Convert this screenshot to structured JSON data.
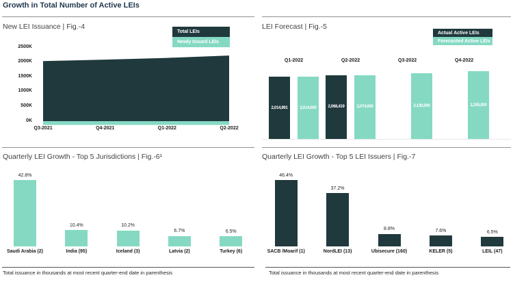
{
  "page": {
    "title": "Growth in Total Number of Active LEIs",
    "footnote": "Total issuance in thousands at most recent quarter-end date in parenthesis"
  },
  "colors": {
    "dark_teal": "#20393d",
    "mint": "#85d9c3",
    "title_navy": "#22384e",
    "heading_gray": "#3f3f3f"
  },
  "chart_data": [
    {
      "id": "fig4",
      "type": "area",
      "title": "New LEI Issuance | Fig.-4",
      "x": [
        "Q3-2021",
        "Q4-2021",
        "Q1-2022",
        "Q2-2022"
      ],
      "series": [
        {
          "name": "Total LEIs",
          "color_key": "dark_teal",
          "values": [
            2030000,
            2080000,
            2140000,
            2220000
          ]
        },
        {
          "name": "Newly Issued LEIs",
          "color_key": "mint",
          "values": [
            65000,
            65000,
            70000,
            70000
          ]
        }
      ],
      "ylim": [
        0,
        2500000
      ],
      "yticks": [
        "0K",
        "500K",
        "1000K",
        "1500K",
        "2000K",
        "2500K"
      ],
      "legend": [
        "Total LEIs",
        "Newly Issued LEIs"
      ],
      "legend_position": "top-right",
      "grid": false
    },
    {
      "id": "fig5",
      "type": "bar",
      "title": "LEI Forecast | Fig.-5",
      "categories": [
        "Q1-2022",
        "Q2-2022",
        "Q3-2022",
        "Q4-2022"
      ],
      "series": [
        {
          "name": "Actual Active LEIs",
          "color_key": "dark_teal",
          "values": [
            2014991,
            2068419,
            null,
            null
          ]
        },
        {
          "name": "Forecasted Active LEIs",
          "color_key": "mint",
          "values": [
            2014000,
            2074000,
            2130000,
            2195000
          ]
        }
      ],
      "bar_value_labels": [
        "2,014,991",
        "2,014,000",
        "2,068,419",
        "2,074,000",
        "2,130,000",
        "2,195,000"
      ],
      "ylim": [
        0,
        2195000
      ],
      "legend": [
        "Actual Active LEIs",
        "Forecasted Active LEIs"
      ],
      "legend_position": "top-right",
      "grid": false
    },
    {
      "id": "fig6",
      "type": "bar",
      "title": "Quarterly LEI Growth - Top 5 Jurisdictions | Fig.-6¹",
      "categories": [
        "Saudi Arabia (2)",
        "India (95)",
        "Iceland (3)",
        "Latvia (2)",
        "Turkey (6)"
      ],
      "values": [
        42.8,
        10.4,
        10.2,
        6.7,
        6.5
      ],
      "value_suffix": "%",
      "color_key": "mint",
      "ylim": [
        0,
        46
      ],
      "grid": false
    },
    {
      "id": "fig7",
      "type": "bar",
      "title": "Quarterly LEI Growth - Top 5 LEI Issuers | Fig.-7",
      "categories": [
        "SACB /Moarif (1)",
        "NordLEI (13)",
        "Ubisecure (160)",
        "KELER (5)",
        "LEIL (47)"
      ],
      "values": [
        46.4,
        37.2,
        8.8,
        7.6,
        6.5
      ],
      "value_suffix": "%",
      "color_key": "dark_teal",
      "ylim": [
        0,
        50
      ],
      "grid": false
    }
  ]
}
